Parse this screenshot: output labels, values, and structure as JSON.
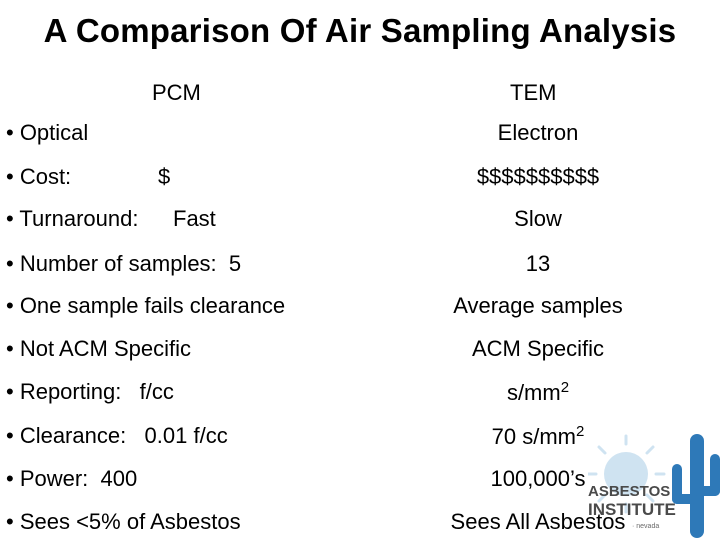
{
  "title": "A Comparison Of Air Sampling Analysis",
  "columns": {
    "left": "PCM",
    "right": "TEM"
  },
  "rows": [
    {
      "left": "• Optical",
      "mid": "",
      "right": "Electron"
    },
    {
      "left": "• Cost:",
      "mid": "$",
      "right": "$$$$$$$$$$"
    },
    {
      "left": "• Turnaround:",
      "mid": "Fast",
      "right": "Slow"
    },
    {
      "left": "• Number of samples:  5",
      "mid": "",
      "right": "13"
    },
    {
      "left": "• One sample fails clearance",
      "mid": "",
      "right": "Average samples"
    },
    {
      "left": "• Not ACM Specific",
      "mid": "",
      "right": "ACM Specific"
    },
    {
      "left": "• Reporting:   f/cc",
      "mid": "",
      "right": "s/mm",
      "right_sup": "2"
    },
    {
      "left": "• Clearance:   0.01 f/cc",
      "mid": "",
      "right": "70 s/mm",
      "right_sup": "2"
    },
    {
      "left": "• Power:  400",
      "mid": "",
      "right": "100,000’s"
    },
    {
      "left": "• Sees <5% of Asbestos",
      "mid": "",
      "right": "Sees All Asbestos"
    }
  ],
  "logo": {
    "line1": "ASBESTOS",
    "line2": "INSTITUTE",
    "tagline": "· nevada"
  },
  "colors": {
    "logo_blue": "#2e79b8",
    "logo_sun": "#cfe3f1",
    "logo_text": "#4a4a4a"
  }
}
